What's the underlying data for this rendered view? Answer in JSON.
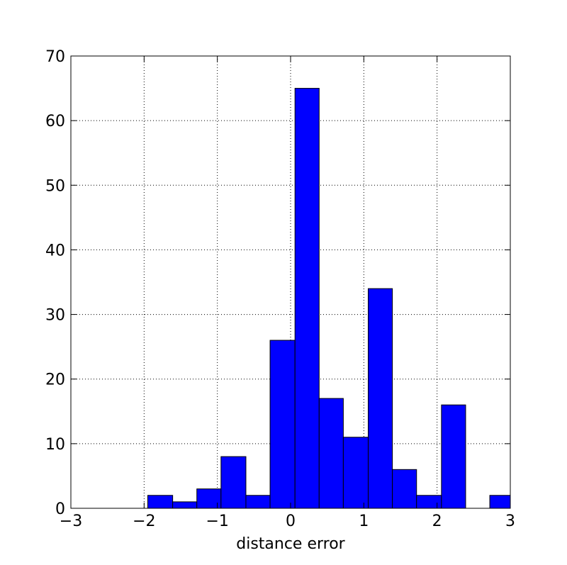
{
  "chart_data": {
    "type": "histogram",
    "xlabel": "distance error",
    "bins": [
      -1.95,
      -1.61,
      -1.28,
      -0.95,
      -0.61,
      -0.28,
      0.06,
      0.39,
      0.72,
      1.06,
      1.39,
      1.72,
      2.06,
      2.39,
      2.72,
      3.06
    ],
    "values": [
      2,
      1,
      3,
      8,
      2,
      26,
      65,
      17,
      11,
      34,
      6,
      2,
      16,
      0,
      2
    ],
    "color": "#0000ff",
    "xlim": [
      -3,
      3
    ],
    "xticks": [
      {
        "value": -3,
        "label": "−3"
      },
      {
        "value": -2,
        "label": "−2"
      },
      {
        "value": -1,
        "label": "−1"
      },
      0,
      1,
      2,
      3
    ],
    "ylim": [
      0,
      70
    ],
    "yticks": [
      0,
      10,
      20,
      30,
      40,
      50,
      60,
      70
    ],
    "grid": true
  }
}
